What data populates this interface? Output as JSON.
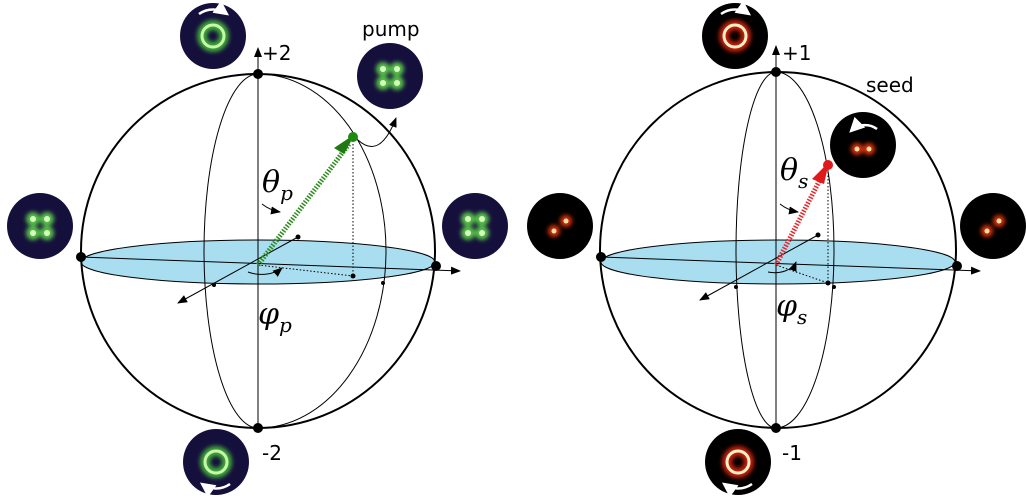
{
  "left": {
    "top_label": "+2",
    "bottom_label": "-2",
    "mode_label": "pump",
    "theta": {
      "symbol": "θ",
      "subscript": "p"
    },
    "phi": {
      "symbol": "φ",
      "subscript": "p"
    }
  },
  "right": {
    "top_label": "+1",
    "bottom_label": "-1",
    "mode_label": "seed",
    "theta": {
      "symbol": "θ",
      "subscript": "s"
    },
    "phi": {
      "symbol": "φ",
      "subscript": "s"
    }
  }
}
